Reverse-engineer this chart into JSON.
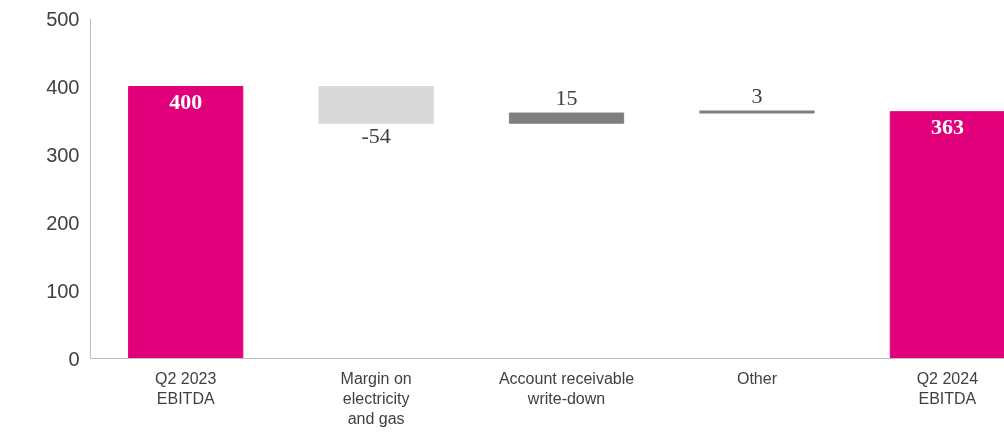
{
  "chart_data": {
    "type": "bar",
    "categories": [
      "Q2 2023\nEBITDA",
      "Margin on\nelectricity\nand gas",
      "Account receivable\nwrite-down",
      "Other",
      "Q2 2024\nEBITDA"
    ],
    "values": [
      400,
      -54,
      15,
      3,
      363
    ],
    "base": [
      0,
      400,
      346,
      361,
      0
    ],
    "colors": [
      "#e2007a",
      "#d9d9d9",
      "#7f7f7f",
      "#7f7f7f",
      "#e2007a"
    ],
    "data_labels": true,
    "ylim": [
      0,
      500
    ],
    "yticks": [
      0,
      100,
      200,
      300,
      400,
      500
    ],
    "grid": false
  }
}
